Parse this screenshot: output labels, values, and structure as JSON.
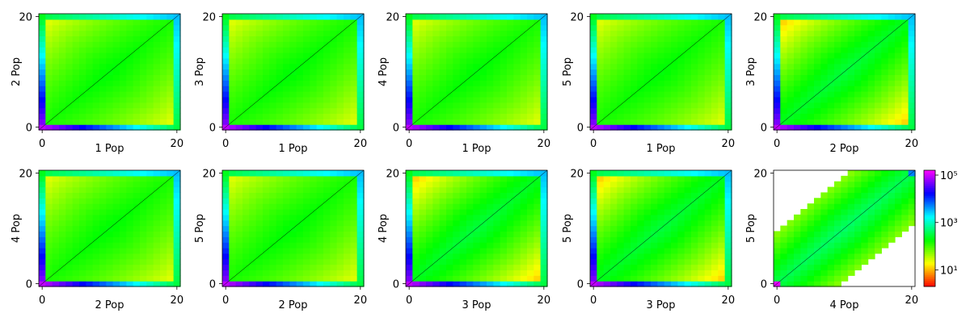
{
  "chart_data": {
    "type": "heatmap",
    "colormap": "gist_rainbow_r",
    "colorbar": {
      "scale": "log",
      "tick_labels": [
        "10¹",
        "10³",
        "10⁵"
      ],
      "tick_values": [
        10,
        1000,
        100000
      ],
      "range": [
        2,
        160000
      ]
    },
    "panels": [
      {
        "xlabel": "1 Pop",
        "ylabel": "2 Pop",
        "xlim": [
          0,
          20
        ],
        "ylim": [
          0,
          20
        ],
        "x_ticks": [
          "0",
          "20"
        ],
        "y_ticks": [
          "0",
          "20"
        ],
        "pattern": "wide"
      },
      {
        "xlabel": "1 Pop",
        "ylabel": "3 Pop",
        "xlim": [
          0,
          20
        ],
        "ylim": [
          0,
          20
        ],
        "x_ticks": [
          "0",
          "20"
        ],
        "y_ticks": [
          "0",
          "20"
        ],
        "pattern": "wide"
      },
      {
        "xlabel": "1 Pop",
        "ylabel": "4 Pop",
        "xlim": [
          0,
          20
        ],
        "ylim": [
          0,
          20
        ],
        "x_ticks": [
          "0",
          "20"
        ],
        "y_ticks": [
          "0",
          "20"
        ],
        "pattern": "wide"
      },
      {
        "xlabel": "1 Pop",
        "ylabel": "5 Pop",
        "xlim": [
          0,
          20
        ],
        "ylim": [
          0,
          20
        ],
        "x_ticks": [
          "0",
          "20"
        ],
        "y_ticks": [
          "0",
          "20"
        ],
        "pattern": "wide"
      },
      {
        "xlabel": "2 Pop",
        "ylabel": "3 Pop",
        "xlim": [
          0,
          20
        ],
        "ylim": [
          0,
          20
        ],
        "x_ticks": [
          "0",
          "20"
        ],
        "y_ticks": [
          "0",
          "20"
        ],
        "pattern": "medium"
      },
      {
        "xlabel": "2 Pop",
        "ylabel": "4 Pop",
        "xlim": [
          0,
          20
        ],
        "ylim": [
          0,
          20
        ],
        "x_ticks": [
          "0",
          "20"
        ],
        "y_ticks": [
          "0",
          "20"
        ],
        "pattern": "wide"
      },
      {
        "xlabel": "2 Pop",
        "ylabel": "5 Pop",
        "xlim": [
          0,
          20
        ],
        "ylim": [
          0,
          20
        ],
        "x_ticks": [
          "0",
          "20"
        ],
        "y_ticks": [
          "0",
          "20"
        ],
        "pattern": "wide"
      },
      {
        "xlabel": "3 Pop",
        "ylabel": "4 Pop",
        "xlim": [
          0,
          20
        ],
        "ylim": [
          0,
          20
        ],
        "x_ticks": [
          "0",
          "20"
        ],
        "y_ticks": [
          "0",
          "20"
        ],
        "pattern": "medium"
      },
      {
        "xlabel": "3 Pop",
        "ylabel": "5 Pop",
        "xlim": [
          0,
          20
        ],
        "ylim": [
          0,
          20
        ],
        "x_ticks": [
          "0",
          "20"
        ],
        "y_ticks": [
          "0",
          "20"
        ],
        "pattern": "medium"
      },
      {
        "xlabel": "4 Pop",
        "ylabel": "5 Pop",
        "xlim": [
          0,
          20
        ],
        "ylim": [
          0,
          20
        ],
        "x_ticks": [
          "0",
          "20"
        ],
        "y_ticks": [
          "0",
          "20"
        ],
        "pattern": "narrow"
      }
    ]
  }
}
